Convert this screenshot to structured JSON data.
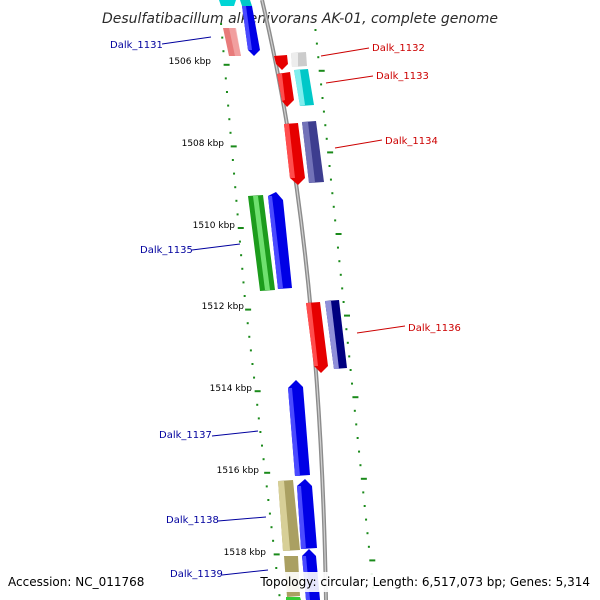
{
  "title": "Desulfatibacillum alkenivorans AK-01, complete genome",
  "footer": {
    "accession": "Accession: NC_011768",
    "summary": "Topology: circular; Length: 6,517,073 bp; Genes: 5,314"
  },
  "colors": {
    "backbone": "#8c8c8c",
    "tick": "#1a8a1a",
    "minus_strand_label": "#00009e",
    "plus_strand_label": "#cc0000"
  },
  "scale_marks": [
    "1506 kbp",
    "1508 kbp",
    "1510 kbp",
    "1512 kbp",
    "1514 kbp",
    "1516 kbp",
    "1518 kbp"
  ],
  "genes": [
    {
      "id": "Dalk_1131",
      "label": "Dalk_1131",
      "strand": "minus"
    },
    {
      "id": "Dalk_1132",
      "label": "Dalk_1132",
      "strand": "plus"
    },
    {
      "id": "Dalk_1133",
      "label": "Dalk_1133",
      "strand": "plus"
    },
    {
      "id": "Dalk_1134",
      "label": "Dalk_1134",
      "strand": "plus"
    },
    {
      "id": "Dalk_1135",
      "label": "Dalk_1135",
      "strand": "minus"
    },
    {
      "id": "Dalk_1136",
      "label": "Dalk_1136",
      "strand": "plus"
    },
    {
      "id": "Dalk_1137",
      "label": "Dalk_1137",
      "strand": "minus"
    },
    {
      "id": "Dalk_1138",
      "label": "Dalk_1138",
      "strand": "minus"
    },
    {
      "id": "Dalk_1139",
      "label": "Dalk_1139",
      "strand": "minus"
    }
  ]
}
